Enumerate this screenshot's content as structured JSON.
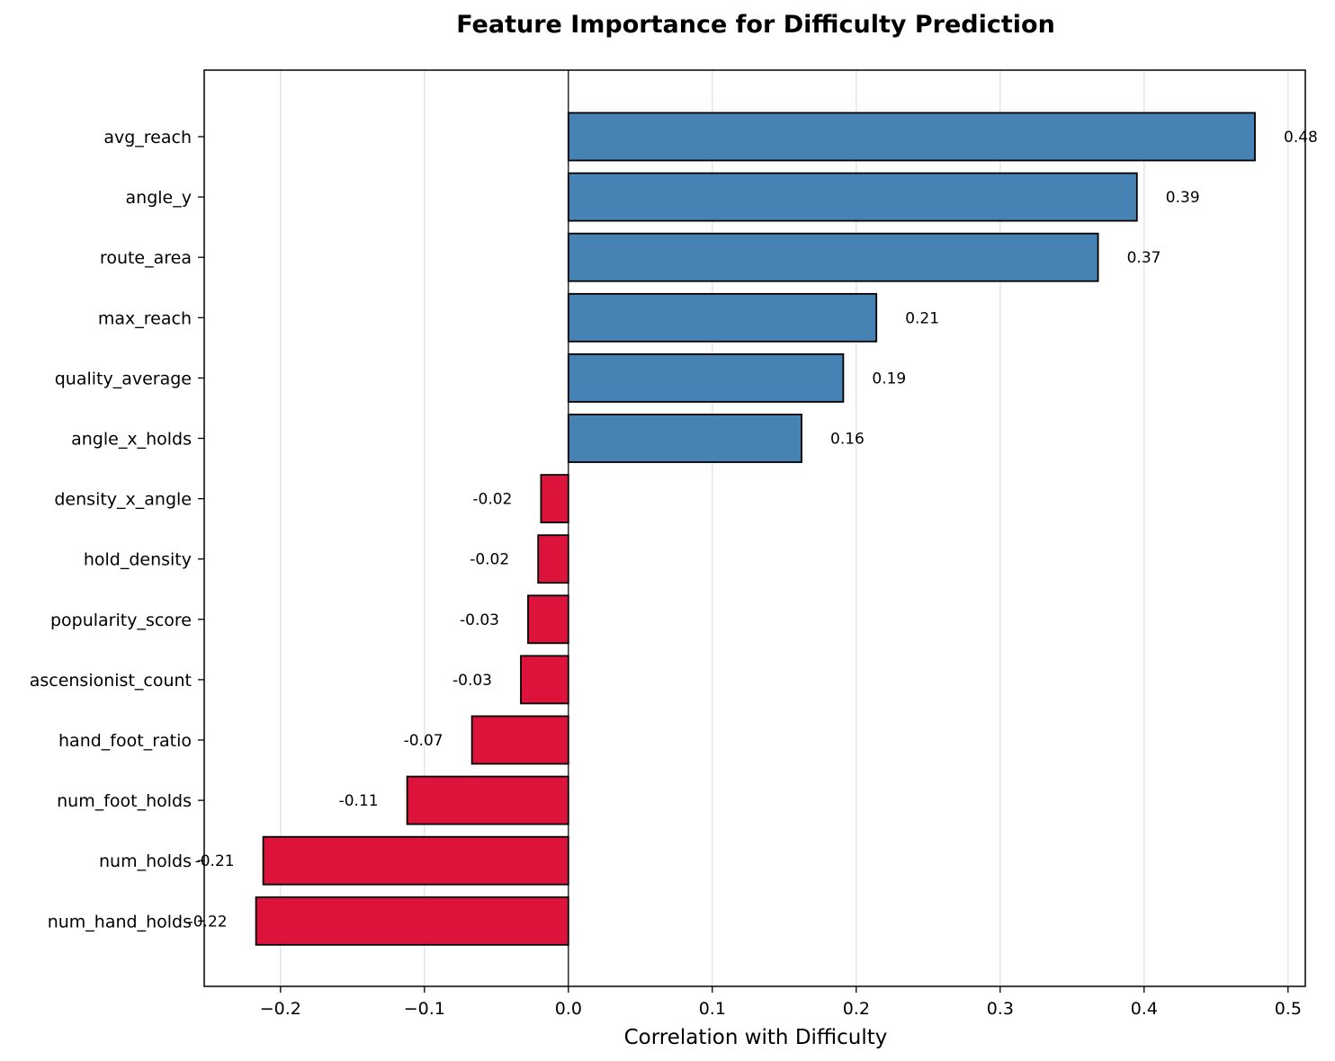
{
  "chart_data": {
    "type": "bar",
    "orientation": "horizontal",
    "title": "Feature Importance for Difficulty Prediction",
    "xlabel": "Correlation with Difficulty",
    "ylabel": "",
    "xlim": [
      -0.253,
      0.512
    ],
    "xticks": [
      -0.2,
      -0.1,
      0.0,
      0.1,
      0.2,
      0.3,
      0.4,
      0.5
    ],
    "xtick_labels": [
      "−0.2",
      "−0.1",
      "0.0",
      "0.1",
      "0.2",
      "0.3",
      "0.4",
      "0.5"
    ],
    "grid": "x-axis vertical lines",
    "legend": "none",
    "zero_line": true,
    "colors": {
      "positive": "#4682b4",
      "negative": "#dc143c",
      "edge": "#000000",
      "grid": "#e5e5e5"
    },
    "categories": [
      "avg_reach",
      "angle_y",
      "route_area",
      "max_reach",
      "quality_average",
      "angle_x_holds",
      "density_x_angle",
      "hold_density",
      "popularity_score",
      "ascensionist_count",
      "hand_foot_ratio",
      "num_foot_holds",
      "num_holds",
      "num_hand_holds"
    ],
    "values": [
      0.477,
      0.395,
      0.368,
      0.214,
      0.191,
      0.162,
      -0.019,
      -0.021,
      -0.028,
      -0.033,
      -0.067,
      -0.112,
      -0.212,
      -0.217
    ],
    "value_labels": [
      "0.48",
      "0.39",
      "0.37",
      "0.21",
      "0.19",
      "0.16",
      "-0.02",
      "-0.02",
      "-0.03",
      "-0.03",
      "-0.07",
      "-0.11",
      "-0.21",
      "-0.22"
    ]
  }
}
